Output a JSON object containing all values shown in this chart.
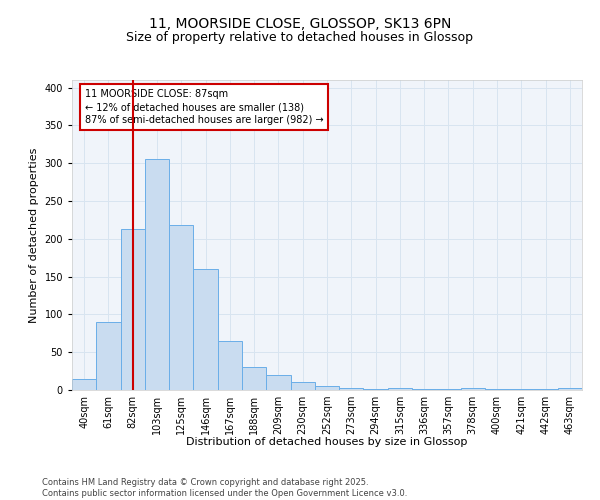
{
  "title1": "11, MOORSIDE CLOSE, GLOSSOP, SK13 6PN",
  "title2": "Size of property relative to detached houses in Glossop",
  "xlabel": "Distribution of detached houses by size in Glossop",
  "ylabel": "Number of detached properties",
  "categories": [
    "40sqm",
    "61sqm",
    "82sqm",
    "103sqm",
    "125sqm",
    "146sqm",
    "167sqm",
    "188sqm",
    "209sqm",
    "230sqm",
    "252sqm",
    "273sqm",
    "294sqm",
    "315sqm",
    "336sqm",
    "357sqm",
    "378sqm",
    "400sqm",
    "421sqm",
    "442sqm",
    "463sqm"
  ],
  "values": [
    15,
    90,
    213,
    305,
    218,
    160,
    65,
    30,
    20,
    10,
    5,
    2,
    1,
    2,
    1,
    1,
    3,
    1,
    1,
    1,
    3
  ],
  "bar_color": "#c9dcf0",
  "bar_edge_color": "#6aaee8",
  "vline_x": 2,
  "vline_color": "#cc0000",
  "annotation_line1": "11 MOORSIDE CLOSE: 87sqm",
  "annotation_line2": "← 12% of detached houses are smaller (138)",
  "annotation_line3": "87% of semi-detached houses are larger (982) →",
  "annotation_box_color": "white",
  "annotation_box_edge": "#cc0000",
  "ylim_max": 410,
  "yticks": [
    0,
    50,
    100,
    150,
    200,
    250,
    300,
    350,
    400
  ],
  "grid_color": "#d8e4f0",
  "bg_color": "#f0f4fa",
  "footer_line1": "Contains HM Land Registry data © Crown copyright and database right 2025.",
  "footer_line2": "Contains public sector information licensed under the Open Government Licence v3.0.",
  "title_fontsize": 10,
  "subtitle_fontsize": 9,
  "axis_label_fontsize": 8,
  "tick_fontsize": 7,
  "annot_fontsize": 7,
  "footer_fontsize": 6
}
